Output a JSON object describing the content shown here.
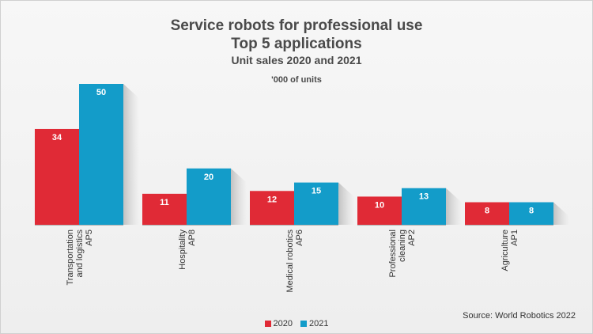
{
  "chart_data": {
    "type": "bar",
    "title": "Service robots for professional use",
    "subtitle": "Top 5 applications",
    "subtitle2": "Unit sales 2020 and 2021",
    "unit_note": "'000 of units",
    "categories": [
      [
        "Transportation",
        "and logistics",
        "AP5"
      ],
      [
        "Hospitality",
        "AP8"
      ],
      [
        "Medical robotics",
        "AP6"
      ],
      [
        "Professional",
        "cleaning",
        "AP2"
      ],
      [
        "Agriculture",
        "AP1"
      ]
    ],
    "series": [
      {
        "name": "2020",
        "color": "#e02a36",
        "values": [
          34,
          11,
          12,
          10,
          8
        ]
      },
      {
        "name": "2021",
        "color": "#139cc9",
        "values": [
          50,
          20,
          15,
          13,
          8
        ]
      }
    ],
    "ylim": [
      0,
      50
    ],
    "legend": "bottom-center",
    "grid": false,
    "source": "Source: World Robotics 2022"
  }
}
